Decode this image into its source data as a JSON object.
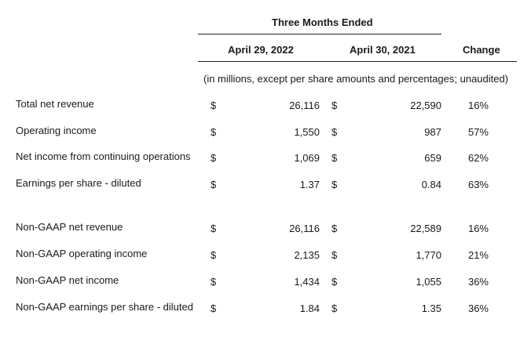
{
  "header": {
    "period_title": "Three Months Ended",
    "col1_title": "April 29, 2022",
    "col2_title": "April 30, 2021",
    "change_title": "Change",
    "note": "(in millions, except per share amounts and percentages; unaudited)"
  },
  "rows": [
    {
      "label": "Total net revenue",
      "cur1": "$",
      "v1": "26,116",
      "cur2": "$",
      "v2": "22,590",
      "change": "16%"
    },
    {
      "label": "Operating income",
      "cur1": "$",
      "v1": "1,550",
      "cur2": "$",
      "v2": "987",
      "change": "57%"
    },
    {
      "label": "Net income from continuing operations",
      "cur1": "$",
      "v1": "1,069",
      "cur2": "$",
      "v2": "659",
      "change": "62%"
    },
    {
      "label": "Earnings per share - diluted",
      "cur1": "$",
      "v1": "1.37",
      "cur2": "$",
      "v2": "0.84",
      "change": "63%"
    },
    {
      "label": "Non-GAAP net revenue",
      "cur1": "$",
      "v1": "26,116",
      "cur2": "$",
      "v2": "22,589",
      "change": "16%"
    },
    {
      "label": "Non-GAAP operating income",
      "cur1": "$",
      "v1": "2,135",
      "cur2": "$",
      "v2": "1,770",
      "change": "21%"
    },
    {
      "label": "Non-GAAP net income",
      "cur1": "$",
      "v1": "1,434",
      "cur2": "$",
      "v2": "1,055",
      "change": "36%"
    },
    {
      "label": "Non-GAAP earnings per share - diluted",
      "cur1": "$",
      "v1": "1.84",
      "cur2": "$",
      "v2": "1.35",
      "change": "36%"
    }
  ]
}
